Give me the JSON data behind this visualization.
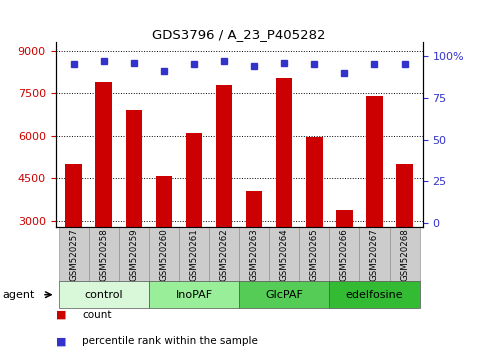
{
  "title": "GDS3796 / A_23_P405282",
  "samples": [
    "GSM520257",
    "GSM520258",
    "GSM520259",
    "GSM520260",
    "GSM520261",
    "GSM520262",
    "GSM520263",
    "GSM520264",
    "GSM520265",
    "GSM520266",
    "GSM520267",
    "GSM520268"
  ],
  "bar_values": [
    5000,
    7900,
    6900,
    4600,
    6100,
    7800,
    4050,
    8050,
    5950,
    3400,
    7400,
    5000
  ],
  "percentile_values": [
    95,
    97,
    96,
    91,
    95,
    97,
    94,
    96,
    95,
    90,
    95,
    95
  ],
  "bar_color": "#cc0000",
  "dot_color": "#3333cc",
  "ylim_left": [
    2800,
    9300
  ],
  "ylim_right": [
    -2,
    108
  ],
  "yticks_left": [
    3000,
    4500,
    6000,
    7500,
    9000
  ],
  "yticks_right": [
    0,
    25,
    50,
    75,
    100
  ],
  "yticklabels_right": [
    "0",
    "25",
    "50",
    "75",
    "100%"
  ],
  "groups": [
    {
      "label": "control",
      "start": 0,
      "end": 3,
      "color": "#d9f7d9"
    },
    {
      "label": "InoPAF",
      "start": 3,
      "end": 6,
      "color": "#99ee99"
    },
    {
      "label": "GlcPAF",
      "start": 6,
      "end": 9,
      "color": "#55cc55"
    },
    {
      "label": "edelfosine",
      "start": 9,
      "end": 12,
      "color": "#33bb33"
    }
  ],
  "agent_label": "agent",
  "legend_items": [
    {
      "label": "count",
      "color": "#cc0000"
    },
    {
      "label": "percentile rank within the sample",
      "color": "#3333cc"
    }
  ],
  "background_color": "#ffffff",
  "tick_label_color_left": "#cc0000",
  "tick_label_color_right": "#3333cc",
  "bar_width": 0.55,
  "dot_size": 5,
  "sample_box_color": "#cccccc",
  "sample_box_edge": "#888888"
}
